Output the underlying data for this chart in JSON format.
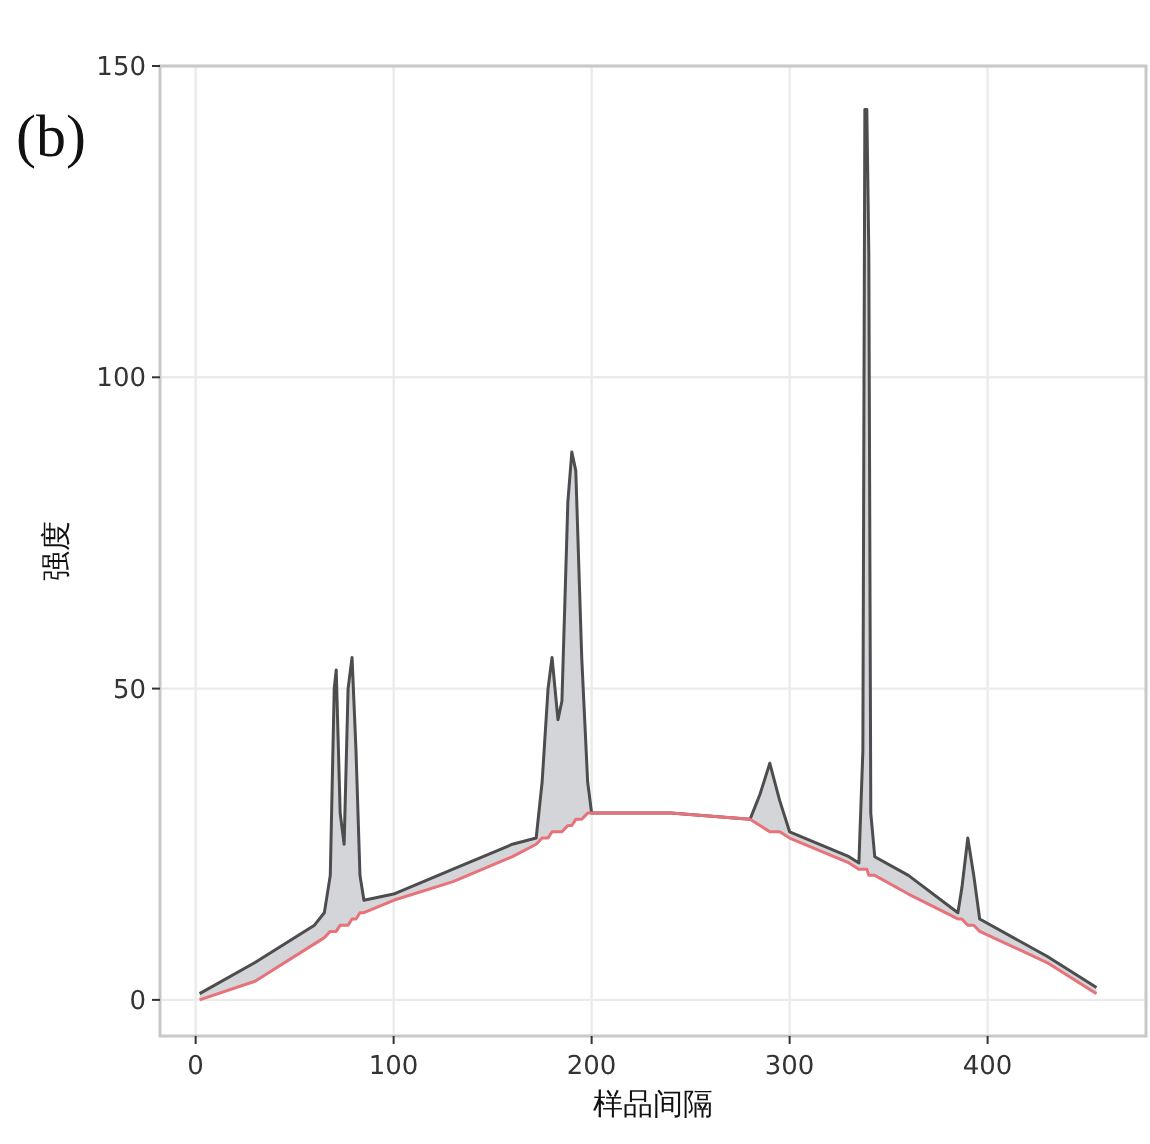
{
  "chart_data": {
    "type": "line",
    "xlabel": "样品间隔",
    "ylabel": "强度",
    "annotations": [
      "(b)"
    ],
    "x": [
      2,
      30,
      60,
      65,
      68,
      70,
      71,
      73,
      75,
      77,
      79,
      81,
      83,
      85,
      100,
      130,
      160,
      172,
      175,
      178,
      180,
      183,
      185,
      188,
      190,
      192,
      195,
      198,
      200,
      240,
      280,
      285,
      290,
      295,
      300,
      330,
      335,
      337,
      338,
      339,
      340,
      341,
      343,
      360,
      385,
      387,
      390,
      393,
      396,
      430,
      455
    ],
    "series": [
      {
        "type": "area",
        "color": "#4d4d4d",
        "values": [
          1,
          6,
          12,
          14,
          20,
          50,
          53,
          30,
          25,
          50,
          55,
          40,
          20,
          16,
          17,
          21,
          25,
          26,
          35,
          50,
          55,
          45,
          48,
          80,
          88,
          85,
          55,
          35,
          30,
          30,
          29,
          33,
          38,
          32,
          27,
          23,
          22,
          40,
          143,
          143,
          120,
          30,
          23,
          20,
          14,
          18,
          26,
          20,
          13,
          7,
          2
        ]
      },
      {
        "color": "#e8727a",
        "values": [
          0,
          3,
          9,
          10,
          11,
          11,
          11,
          12,
          12,
          12,
          13,
          13,
          14,
          14,
          16,
          19,
          23,
          25,
          26,
          26,
          27,
          27,
          27,
          28,
          28,
          29,
          29,
          30,
          30,
          30,
          29,
          28,
          27,
          27,
          26,
          22,
          21,
          21,
          21,
          21,
          20,
          20,
          20,
          17,
          13,
          13,
          12,
          12,
          11,
          6,
          1
        ]
      }
    ],
    "xlim": [
      -18,
      480
    ],
    "ylim": [
      -5.8,
      150
    ],
    "xticks": [
      0,
      100,
      200,
      300,
      400
    ],
    "yticks": [
      0,
      50,
      100,
      150
    ],
    "grid": true
  }
}
